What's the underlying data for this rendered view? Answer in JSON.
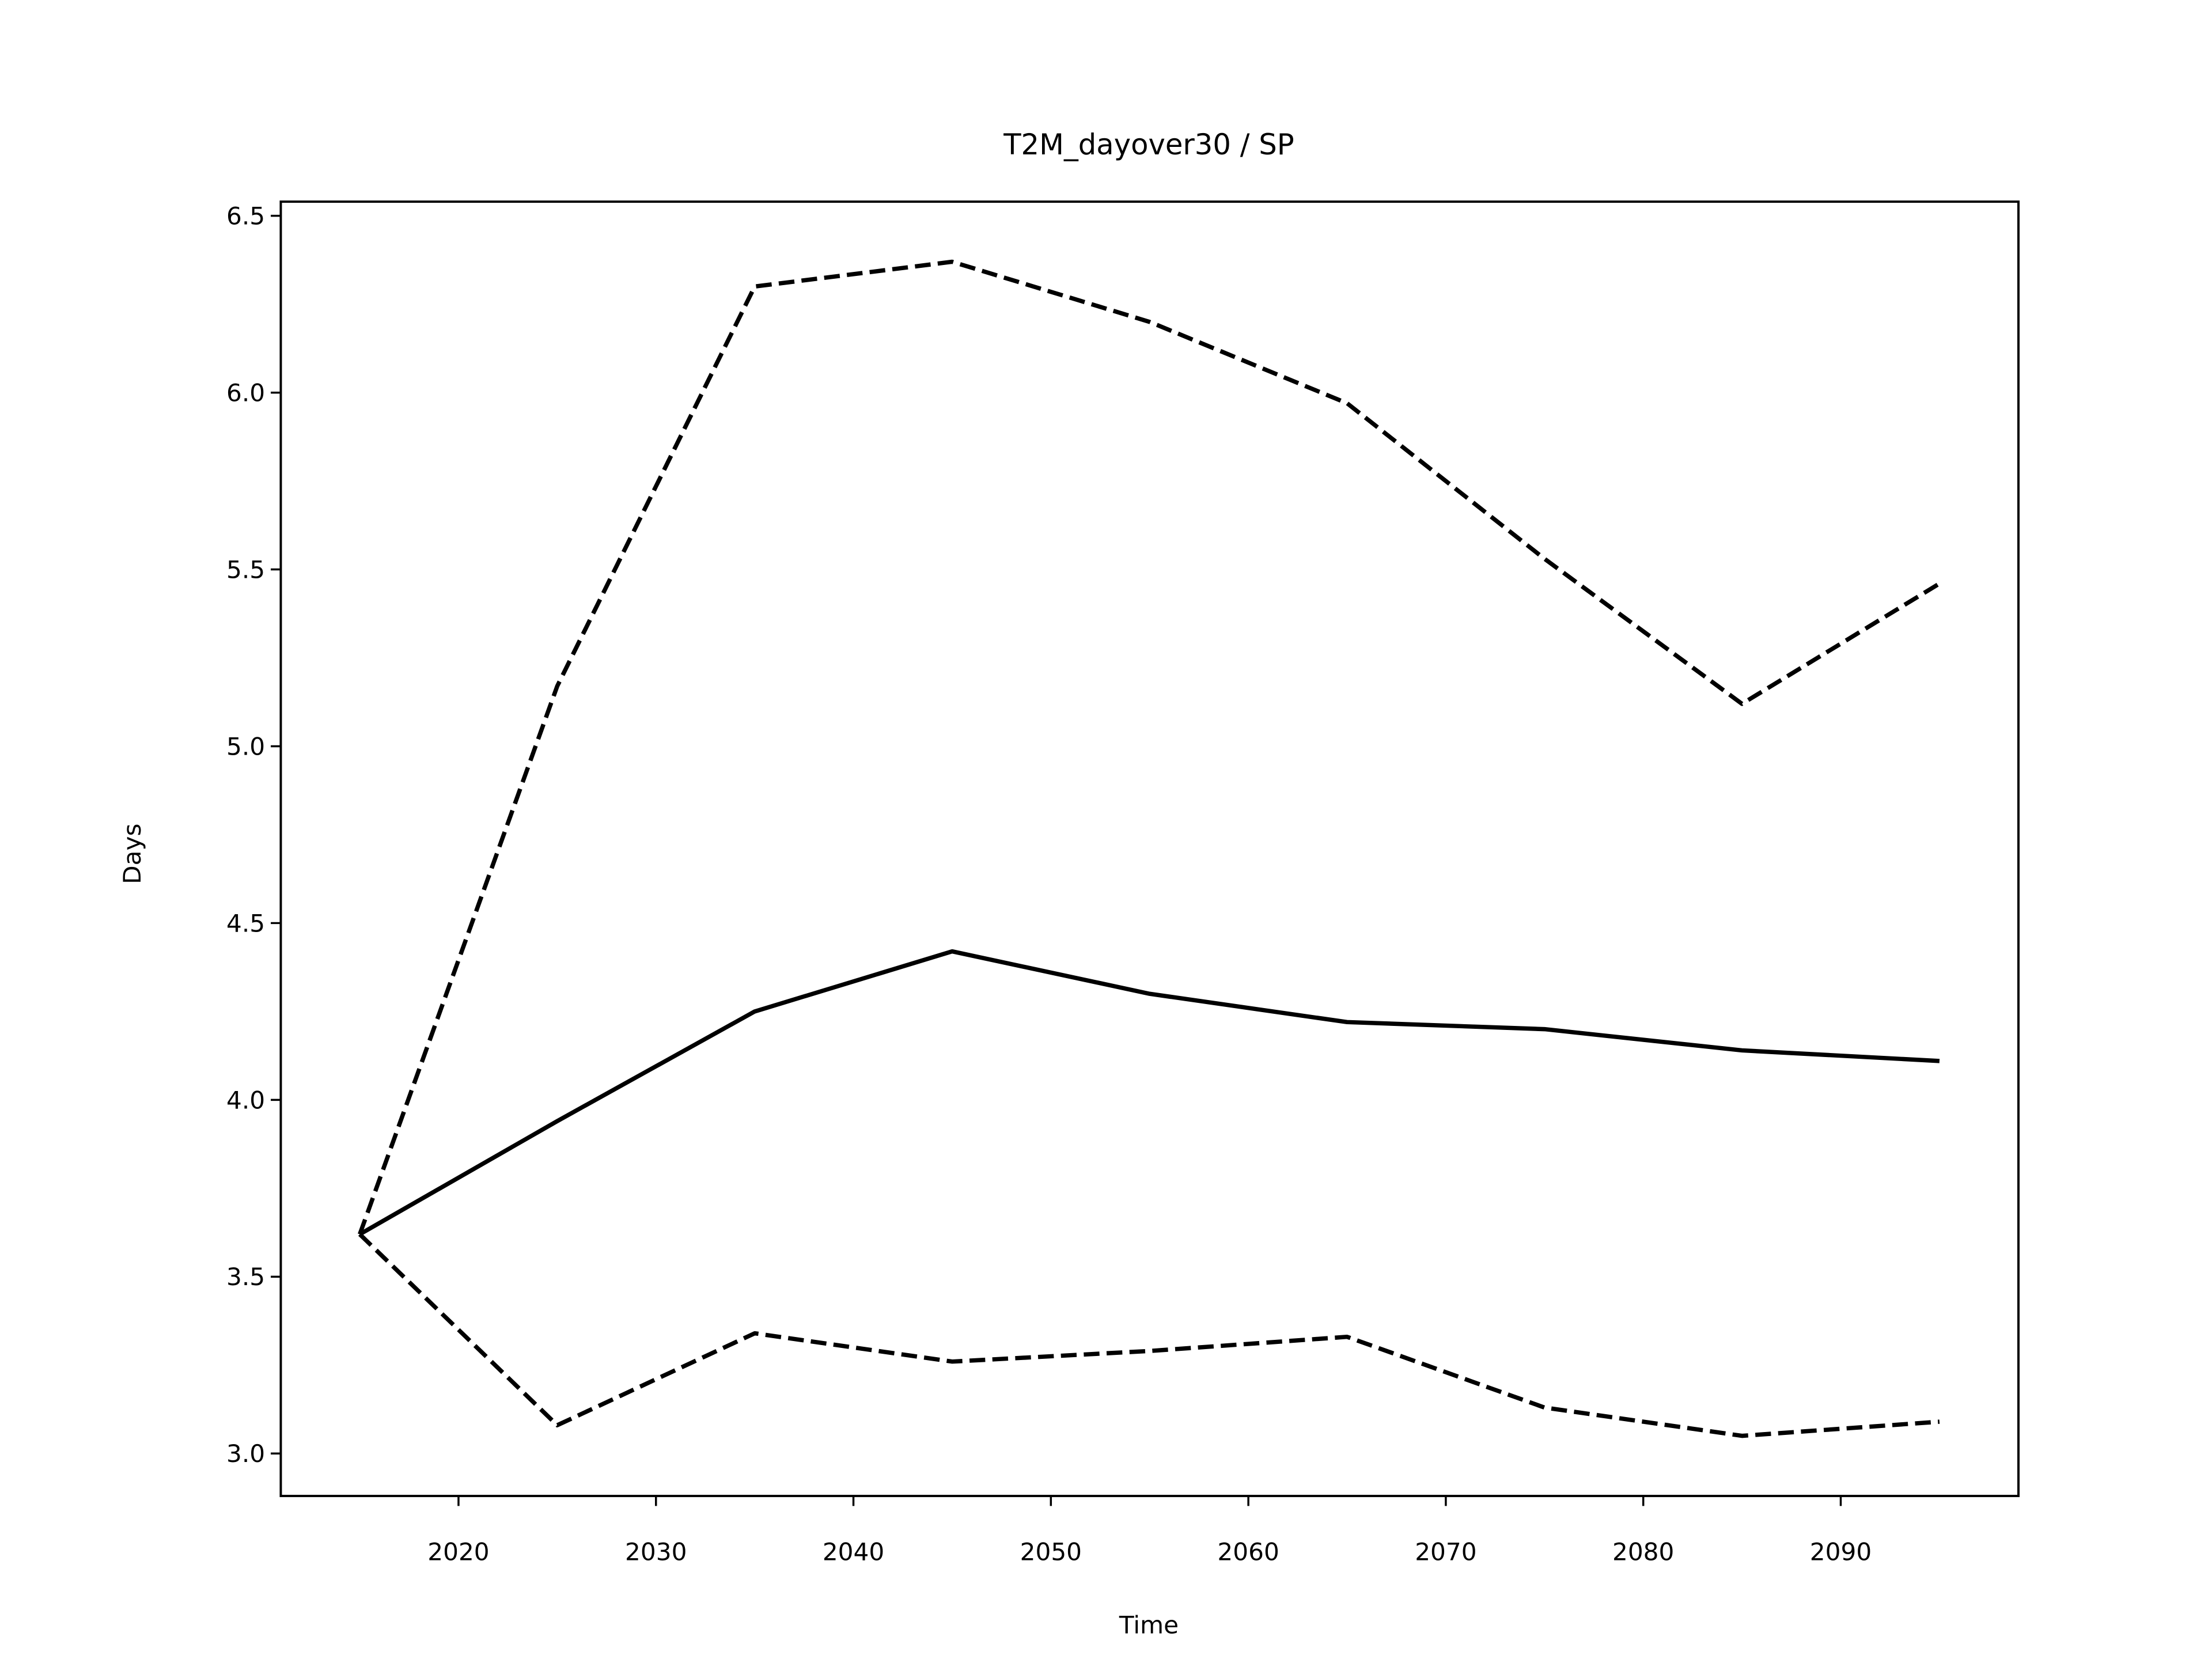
{
  "chart_data": {
    "type": "line",
    "title": "T2M_dayover30 / SP",
    "xlabel": "Time",
    "ylabel": "Days",
    "x": [
      2015,
      2025,
      2035,
      2045,
      2055,
      2065,
      2075,
      2085,
      2095
    ],
    "series": [
      {
        "color": "#000000",
        "linestyle": "solid",
        "values": [
          3.62,
          3.94,
          4.25,
          4.42,
          4.3,
          4.22,
          4.2,
          4.14,
          4.11
        ]
      },
      {
        "color": "#000000",
        "linestyle": "dashed",
        "values": [
          3.62,
          5.17,
          6.3,
          6.37,
          6.2,
          5.97,
          5.53,
          5.12,
          5.46
        ]
      },
      {
        "color": "#000000",
        "linestyle": "dashed",
        "values": [
          3.62,
          3.08,
          3.34,
          3.26,
          3.29,
          3.33,
          3.13,
          3.05,
          3.09
        ]
      }
    ],
    "xlim": [
      2011,
      2099
    ],
    "ylim": [
      2.88,
      6.54
    ],
    "xticks": [
      2020,
      2030,
      2040,
      2050,
      2060,
      2070,
      2080,
      2090
    ],
    "yticks": [
      {
        "value": 3,
        "label": "3.0"
      },
      3.5,
      {
        "value": 4,
        "label": "4.0"
      },
      4.5,
      {
        "value": 5,
        "label": "5.0"
      },
      5.5,
      {
        "value": 6,
        "label": "6.0"
      },
      6.5
    ],
    "grid": false
  }
}
